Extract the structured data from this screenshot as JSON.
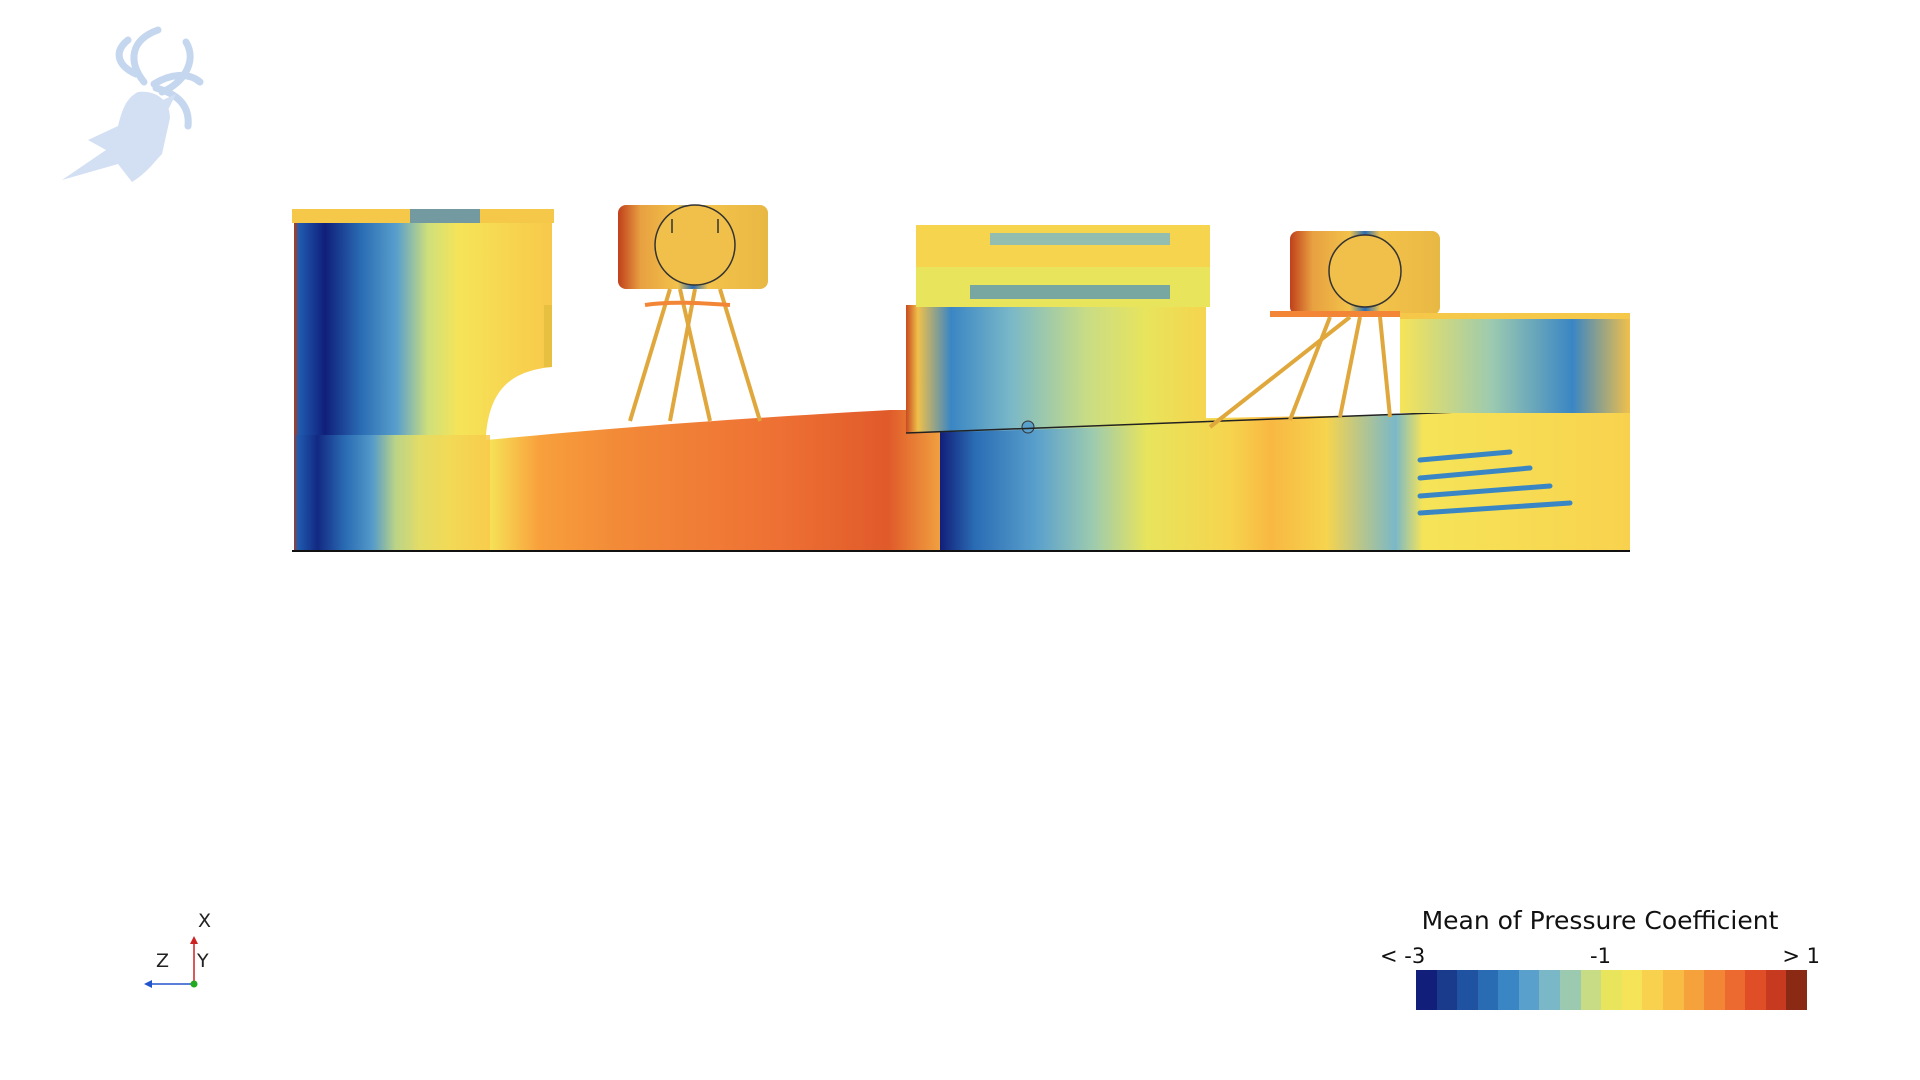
{
  "legend": {
    "title": "Mean of Pressure Coefficient",
    "min_label": "< -3",
    "mid_label": "-1",
    "max_label": "> 1",
    "colormap": [
      "#111f7a",
      "#1a3a8c",
      "#1f52a0",
      "#2a6cb4",
      "#3a86c4",
      "#5aa0cc",
      "#7ab8c8",
      "#9ccab0",
      "#c8dc86",
      "#e8e45c",
      "#f6e458",
      "#f8d24e",
      "#f8bc44",
      "#f6a23c",
      "#f28636",
      "#ec6a30",
      "#e04e28",
      "#c83a20",
      "#8a2a14"
    ]
  },
  "orientation_triad": {
    "x_label": "X",
    "y_label": "Y",
    "z_label": "Z",
    "x_color": "#cc2222",
    "y_color": "#22aa22",
    "z_color": "#2255cc"
  },
  "logo": {
    "icon": "stag-head-icon",
    "color": "#c8d8f0"
  }
}
